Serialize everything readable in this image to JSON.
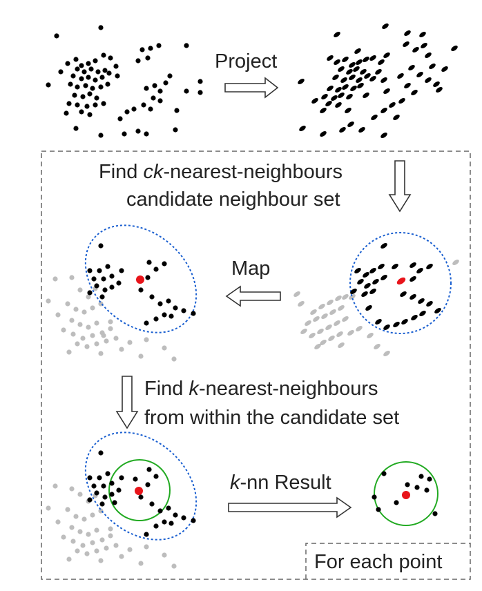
{
  "labels": {
    "project": "Project",
    "find_ck_line1_var": "ck",
    "find_ck_line1_prefix": "Find ",
    "find_ck_line1_suffix": "-nearest-neighbours",
    "find_ck_line2": "candidate neighbour set",
    "map": "Map",
    "find_k_line1_prefix": "Find ",
    "find_k_line1_var": "k",
    "find_k_line1_suffix": "-nearest-neighbours",
    "find_k_line2": "from within the candidate set",
    "knn_var": "k",
    "knn_suffix": "-nn Result",
    "for_each_point": "For each point"
  },
  "colors": {
    "point": "#000000",
    "background_point": "#bdbdbd",
    "query_point": "#e8141a",
    "candidate_boundary": "#1a5fd0",
    "knn_boundary": "#22aa22",
    "frame": "#666666",
    "arrow_stroke": "#333333"
  },
  "icons": {
    "arrow": "hollow-block-arrow"
  }
}
